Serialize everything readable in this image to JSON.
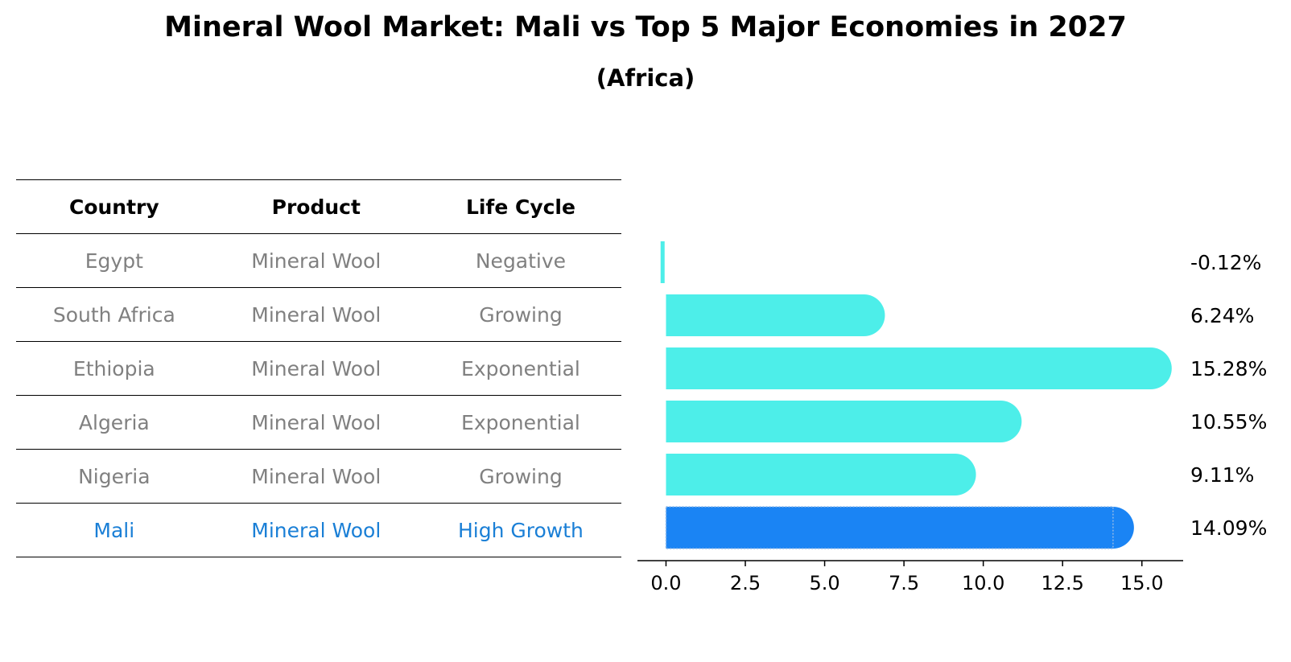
{
  "title": "Mineral Wool Market: Mali vs Top 5 Major Economies in 2027",
  "subtitle": "(Africa)",
  "colors": {
    "bar": "#4deee9",
    "highlight": "#1a84f4",
    "highlight_text": "#1a7fd6",
    "muted_text": "#808080"
  },
  "table": {
    "headers": [
      "Country",
      "Product",
      "Life Cycle"
    ],
    "rows": [
      [
        "Egypt",
        "Mineral Wool",
        "Negative"
      ],
      [
        "South Africa",
        "Mineral Wool",
        "Growing"
      ],
      [
        "Ethiopia",
        "Mineral Wool",
        "Exponential"
      ],
      [
        "Algeria",
        "Mineral Wool",
        "Exponential"
      ],
      [
        "Nigeria",
        "Mineral Wool",
        "Growing"
      ],
      [
        "Mali",
        "Mineral Wool",
        "High Growth"
      ]
    ]
  },
  "chart_data": {
    "type": "bar",
    "orientation": "horizontal",
    "categories": [
      "Egypt",
      "South Africa",
      "Ethiopia",
      "Algeria",
      "Nigeria",
      "Mali"
    ],
    "values": [
      -0.12,
      6.24,
      15.28,
      10.55,
      9.11,
      14.09
    ],
    "value_labels": [
      "-0.12%",
      "6.24%",
      "15.28%",
      "10.55%",
      "9.11%",
      "14.09%"
    ],
    "highlight": "Mali",
    "xlim": [
      -0.9,
      16.3
    ],
    "xticks": [
      0.0,
      2.5,
      5.0,
      7.5,
      10.0,
      12.5,
      15.0
    ],
    "xtick_labels": [
      "0.0",
      "2.5",
      "5.0",
      "7.5",
      "10.0",
      "12.5",
      "15.0"
    ],
    "xlabel": "",
    "ylabel": "",
    "grid": false
  }
}
